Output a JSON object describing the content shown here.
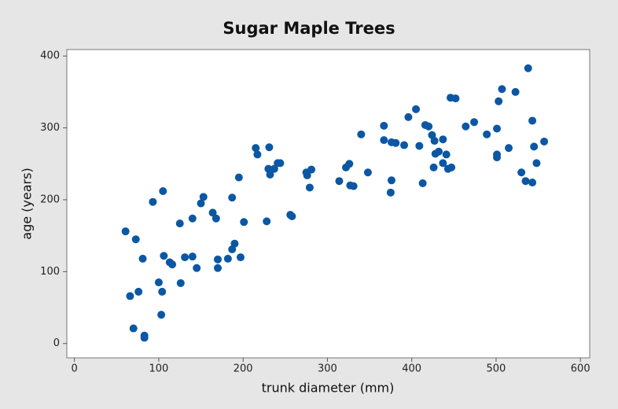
{
  "chart_data": {
    "type": "scatter",
    "title": "Sugar Maple Trees",
    "x_label": "trunk diameter (mm)",
    "y_label": "age (years)",
    "color": "#0b57a4",
    "x": [
      60.6,
      72.8,
      81,
      66,
      76,
      70,
      83,
      83,
      93,
      105,
      100,
      104,
      103,
      106,
      113,
      116,
      125,
      126,
      131,
      140,
      140,
      145,
      150,
      153,
      164,
      168,
      170,
      170,
      182,
      187,
      187,
      190,
      195,
      197,
      201,
      215,
      217,
      228,
      231,
      230,
      232,
      237,
      241,
      244,
      256,
      258,
      275,
      276,
      279,
      281,
      314,
      322,
      326,
      327,
      331,
      340,
      348,
      367,
      367,
      375,
      376,
      376,
      381,
      391,
      396,
      405,
      409,
      413,
      416,
      420,
      424,
      426,
      427,
      428,
      432,
      437,
      437,
      441,
      443,
      446,
      447,
      452,
      464,
      474,
      489,
      501,
      501,
      501,
      503,
      507,
      515,
      523,
      530,
      535,
      538,
      543,
      543,
      545,
      548,
      557
    ],
    "values": [
      156,
      145,
      118,
      66,
      72,
      21,
      11,
      8,
      197,
      212,
      85,
      72,
      40,
      122,
      113,
      110,
      167,
      84,
      120,
      121,
      174,
      105,
      195,
      204,
      182,
      174,
      117,
      105,
      118,
      203,
      131,
      139,
      231,
      120,
      169,
      272,
      263,
      170,
      273,
      243,
      235,
      243,
      251,
      251,
      179,
      177,
      238,
      234,
      217,
      242,
      226,
      245,
      250,
      220,
      219,
      291,
      238,
      303,
      283,
      210,
      227,
      280,
      279,
      276,
      315,
      326,
      275,
      223,
      304,
      302,
      290,
      245,
      282,
      264,
      267,
      284,
      251,
      263,
      243,
      342,
      245,
      341,
      302,
      308,
      291,
      259,
      263,
      299,
      337,
      354,
      272,
      350,
      238,
      226,
      383,
      224,
      310,
      274,
      251,
      281
    ],
    "xlim": [
      -9,
      611
    ],
    "ylim": [
      -20,
      409
    ],
    "xticks": [
      0,
      100,
      200,
      300,
      400,
      500,
      600
    ],
    "yticks": [
      0,
      100,
      200,
      300,
      400
    ]
  }
}
